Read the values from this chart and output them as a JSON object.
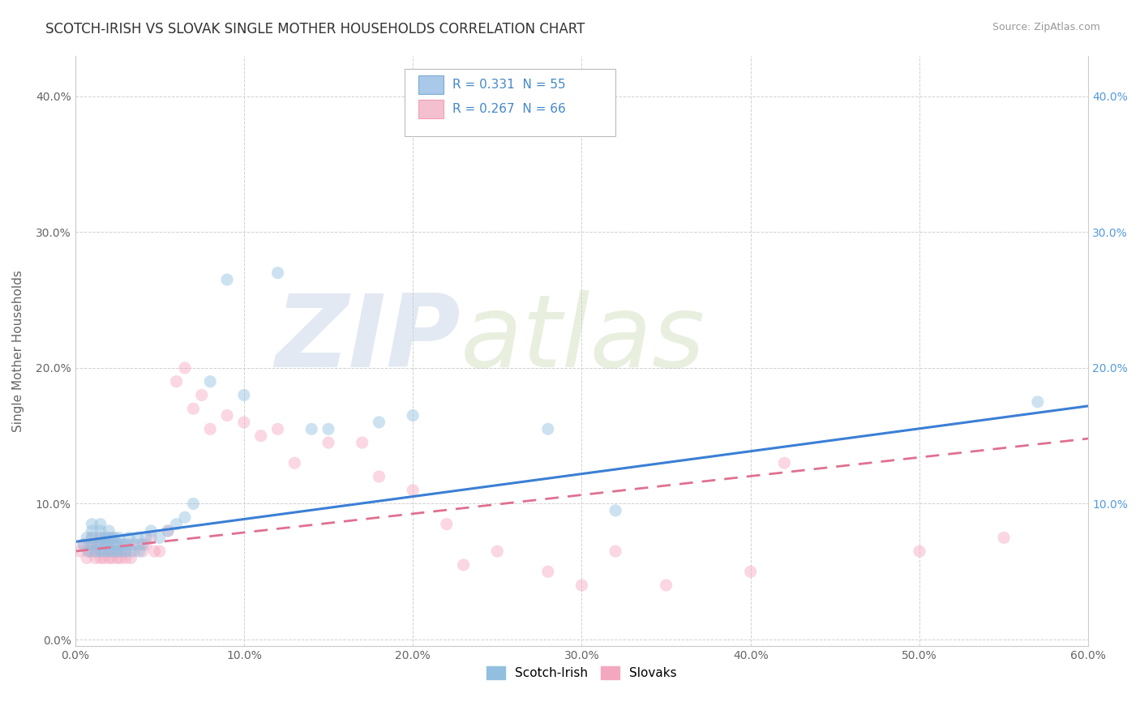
{
  "title": "SCOTCH-IRISH VS SLOVAK SINGLE MOTHER HOUSEHOLDS CORRELATION CHART",
  "source": "Source: ZipAtlas.com",
  "xlabel": "",
  "ylabel": "Single Mother Households",
  "xlim": [
    0.0,
    0.6
  ],
  "ylim": [
    -0.005,
    0.43
  ],
  "xticks": [
    0.0,
    0.1,
    0.2,
    0.3,
    0.4,
    0.5,
    0.6
  ],
  "yticks": [
    0.0,
    0.1,
    0.2,
    0.3,
    0.4
  ],
  "xticklabels": [
    "0.0%",
    "10.0%",
    "20.0%",
    "30.0%",
    "40.0%",
    "50.0%",
    "60.0%"
  ],
  "yticklabels": [
    "0.0%",
    "10.0%",
    "20.0%",
    "30.0%",
    "40.0%"
  ],
  "scotch_irish_color": "#92bfe0",
  "slovak_color": "#f4a8bf",
  "scotch_irish_line_color": "#3a7fd5",
  "slovak_line_color": "#e07090",
  "scotch_irish_R": 0.331,
  "scotch_irish_N": 55,
  "slovak_R": 0.267,
  "slovak_N": 66,
  "legend_label_1": "Scotch-Irish",
  "legend_label_2": "Slovaks",
  "watermark_zip": "ZIP",
  "watermark_atlas": "atlas",
  "background_color": "#ffffff",
  "grid_color": "#cccccc",
  "title_fontsize": 12,
  "axis_fontsize": 11,
  "tick_fontsize": 10,
  "scatter_size": 120,
  "scatter_alpha": 0.45,
  "scotch_irish_scatter_x": [
    0.005,
    0.007,
    0.008,
    0.01,
    0.01,
    0.01,
    0.01,
    0.012,
    0.013,
    0.015,
    0.015,
    0.015,
    0.015,
    0.015,
    0.017,
    0.018,
    0.018,
    0.02,
    0.02,
    0.02,
    0.02,
    0.022,
    0.022,
    0.023,
    0.025,
    0.025,
    0.026,
    0.027,
    0.028,
    0.03,
    0.03,
    0.032,
    0.033,
    0.035,
    0.037,
    0.038,
    0.04,
    0.042,
    0.045,
    0.05,
    0.055,
    0.06,
    0.065,
    0.07,
    0.08,
    0.09,
    0.1,
    0.12,
    0.14,
    0.15,
    0.18,
    0.2,
    0.28,
    0.32,
    0.57
  ],
  "scotch_irish_scatter_y": [
    0.07,
    0.075,
    0.065,
    0.07,
    0.075,
    0.08,
    0.085,
    0.065,
    0.07,
    0.065,
    0.07,
    0.075,
    0.08,
    0.085,
    0.065,
    0.07,
    0.075,
    0.065,
    0.07,
    0.075,
    0.08,
    0.065,
    0.07,
    0.075,
    0.065,
    0.07,
    0.075,
    0.065,
    0.07,
    0.065,
    0.07,
    0.075,
    0.065,
    0.07,
    0.075,
    0.065,
    0.07,
    0.075,
    0.08,
    0.075,
    0.08,
    0.085,
    0.09,
    0.1,
    0.19,
    0.265,
    0.18,
    0.27,
    0.155,
    0.155,
    0.16,
    0.165,
    0.155,
    0.095,
    0.175
  ],
  "slovak_scatter_x": [
    0.003,
    0.005,
    0.007,
    0.008,
    0.008,
    0.01,
    0.01,
    0.01,
    0.012,
    0.012,
    0.013,
    0.015,
    0.015,
    0.015,
    0.015,
    0.017,
    0.018,
    0.018,
    0.02,
    0.02,
    0.02,
    0.022,
    0.022,
    0.023,
    0.025,
    0.025,
    0.026,
    0.027,
    0.028,
    0.03,
    0.03,
    0.032,
    0.033,
    0.035,
    0.038,
    0.04,
    0.042,
    0.045,
    0.047,
    0.05,
    0.055,
    0.06,
    0.065,
    0.07,
    0.075,
    0.08,
    0.09,
    0.1,
    0.11,
    0.12,
    0.13,
    0.15,
    0.17,
    0.18,
    0.2,
    0.22,
    0.23,
    0.25,
    0.28,
    0.3,
    0.32,
    0.35,
    0.4,
    0.42,
    0.5,
    0.55
  ],
  "slovak_scatter_y": [
    0.065,
    0.07,
    0.06,
    0.065,
    0.07,
    0.065,
    0.07,
    0.075,
    0.06,
    0.065,
    0.07,
    0.06,
    0.065,
    0.07,
    0.075,
    0.06,
    0.065,
    0.07,
    0.06,
    0.065,
    0.07,
    0.075,
    0.06,
    0.065,
    0.06,
    0.065,
    0.07,
    0.06,
    0.065,
    0.06,
    0.065,
    0.07,
    0.06,
    0.065,
    0.07,
    0.065,
    0.07,
    0.075,
    0.065,
    0.065,
    0.08,
    0.19,
    0.2,
    0.17,
    0.18,
    0.155,
    0.165,
    0.16,
    0.15,
    0.155,
    0.13,
    0.145,
    0.145,
    0.12,
    0.11,
    0.085,
    0.055,
    0.065,
    0.05,
    0.04,
    0.065,
    0.04,
    0.05,
    0.13,
    0.065,
    0.075
  ]
}
